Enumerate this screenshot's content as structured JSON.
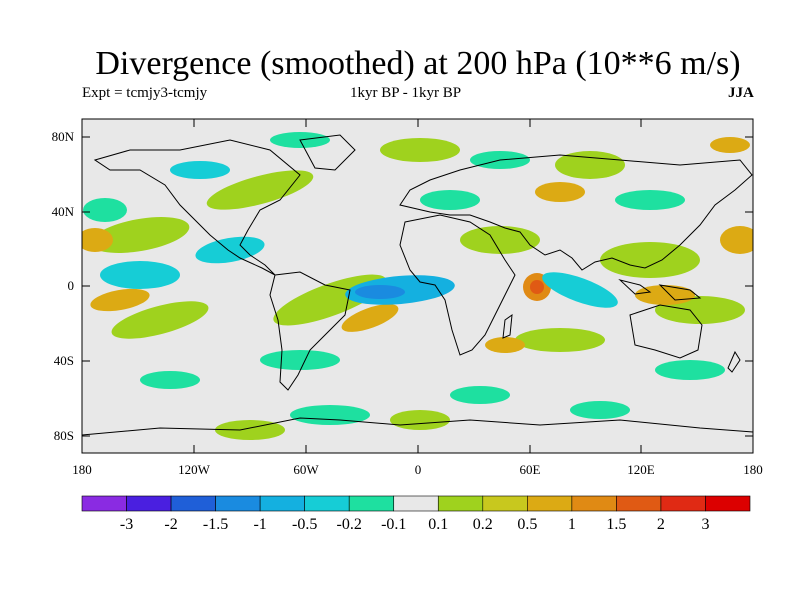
{
  "title": "Divergence (smoothed) at 200 hPa (10**6 m/s)",
  "subtitle_left": "Expt = tcmjy3-tcmjy",
  "subtitle_center": "1kyr BP - 1kyr BP",
  "subtitle_right": "JJA",
  "axes": {
    "lat_ticks": [
      "80N",
      "40N",
      "0",
      "40S",
      "80S"
    ],
    "lon_ticks": [
      "180",
      "120W",
      "60W",
      "0",
      "60E",
      "120E",
      "180"
    ]
  },
  "colorbar": {
    "labels": [
      "-3",
      "-2",
      "-1.5",
      "-1",
      "-0.5",
      "-0.2",
      "-0.1",
      "0.1",
      "0.2",
      "0.5",
      "1",
      "1.5",
      "2",
      "3"
    ],
    "colors": [
      "#8a2be2",
      "#4a1fe0",
      "#1f5fd8",
      "#1a8be0",
      "#14b0e0",
      "#16cdd6",
      "#1ee0a0",
      "#e8e8e8",
      "#9fd21e",
      "#c8c81e",
      "#dcaa14",
      "#e08a14",
      "#e05a14",
      "#e02a14",
      "#dc0000"
    ]
  },
  "colors": {
    "background": "#e8e8e8",
    "coastline": "#000000"
  }
}
